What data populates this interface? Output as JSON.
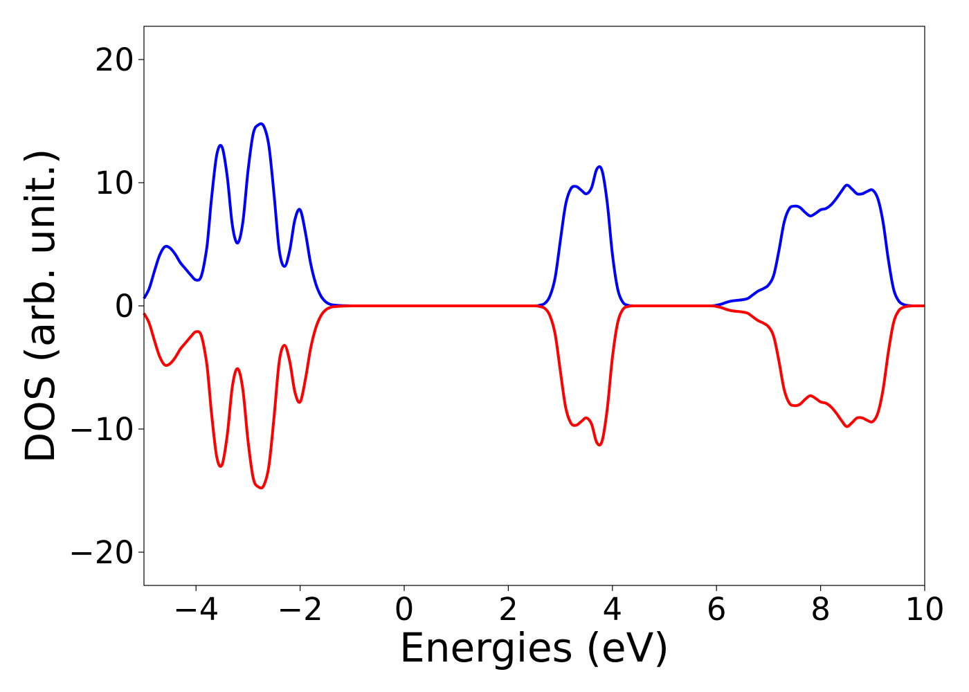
{
  "chart_data": {
    "type": "line",
    "title": "",
    "xlabel": "Energies (eV)",
    "ylabel": "DOS (arb. unit.)",
    "xlim": [
      -5,
      10
    ],
    "ylim": [
      -22.7,
      22.7
    ],
    "xticks": [
      -4,
      -2,
      0,
      2,
      4,
      6,
      8,
      10
    ],
    "xtick_labels": [
      "−4",
      "−2",
      "0",
      "2",
      "4",
      "6",
      "8",
      "10"
    ],
    "yticks": [
      -20,
      -10,
      0,
      10,
      20
    ],
    "ytick_labels": [
      "−20",
      "−10",
      "0",
      "10",
      "20"
    ],
    "grid": false,
    "legend": false,
    "series": [
      {
        "color": "#0000ff",
        "x": [
          -5.0,
          -4.9,
          -4.8,
          -4.7,
          -4.6,
          -4.5,
          -4.4,
          -4.3,
          -4.2,
          -4.1,
          -4.0,
          -3.9,
          -3.8,
          -3.75,
          -3.7,
          -3.6,
          -3.5,
          -3.4,
          -3.3,
          -3.2,
          -3.1,
          -3.0,
          -2.9,
          -2.8,
          -2.7,
          -2.6,
          -2.5,
          -2.4,
          -2.3,
          -2.2,
          -2.1,
          -2.0,
          -1.9,
          -1.8,
          -1.7,
          -1.6,
          -1.5,
          -1.4,
          -1.3,
          -1.2,
          -1.1,
          -1.0,
          -0.9,
          -0.8,
          -0.7,
          -0.6,
          -0.5,
          0.0,
          1.0,
          2.0,
          2.5,
          2.6,
          2.7,
          2.8,
          2.9,
          3.0,
          3.1,
          3.2,
          3.3,
          3.4,
          3.5,
          3.6,
          3.7,
          3.8,
          3.9,
          4.0,
          4.1,
          4.2,
          4.3,
          4.4,
          4.5,
          5.0,
          5.5,
          5.9,
          6.0,
          6.1,
          6.2,
          6.3,
          6.4,
          6.5,
          6.6,
          6.7,
          6.8,
          6.9,
          7.0,
          7.1,
          7.2,
          7.3,
          7.4,
          7.5,
          7.6,
          7.7,
          7.8,
          7.9,
          8.0,
          8.1,
          8.2,
          8.3,
          8.4,
          8.5,
          8.6,
          8.7,
          8.8,
          8.9,
          9.0,
          9.1,
          9.2,
          9.3,
          9.4,
          9.5,
          9.6,
          9.7,
          9.8,
          9.9,
          10.0
        ],
        "y": [
          0.6,
          1.4,
          2.8,
          4.1,
          4.8,
          4.7,
          4.2,
          3.5,
          3.0,
          2.5,
          2.1,
          2.4,
          4.5,
          6.5,
          8.8,
          12.3,
          12.9,
          10.5,
          6.5,
          5.1,
          6.8,
          11.0,
          14.0,
          14.7,
          14.6,
          13.0,
          9.0,
          4.5,
          3.2,
          4.5,
          7.0,
          7.8,
          6.0,
          3.5,
          1.8,
          0.8,
          0.3,
          0.1,
          0.05,
          0.02,
          0.01,
          0.0,
          0.0,
          0.0,
          0.0,
          0.0,
          0.0,
          0.0,
          0.0,
          0.0,
          0.0,
          0.05,
          0.2,
          0.8,
          2.3,
          5.3,
          8.2,
          9.5,
          9.7,
          9.4,
          9.1,
          9.6,
          11.1,
          11.0,
          8.4,
          4.2,
          1.4,
          0.3,
          0.05,
          0.0,
          0.0,
          0.0,
          0.0,
          0.0,
          0.05,
          0.15,
          0.3,
          0.4,
          0.45,
          0.5,
          0.6,
          0.9,
          1.2,
          1.4,
          1.7,
          2.5,
          4.5,
          6.8,
          7.9,
          8.1,
          8.0,
          7.6,
          7.3,
          7.5,
          7.8,
          7.9,
          8.2,
          8.7,
          9.3,
          9.8,
          9.5,
          9.1,
          9.1,
          9.3,
          9.4,
          8.7,
          6.8,
          3.8,
          1.4,
          0.4,
          0.1,
          0.02,
          0.0,
          0.0,
          0.0
        ]
      },
      {
        "color": "#ff0000",
        "x": [
          -5.0,
          -4.9,
          -4.8,
          -4.7,
          -4.6,
          -4.5,
          -4.4,
          -4.3,
          -4.2,
          -4.1,
          -4.0,
          -3.9,
          -3.8,
          -3.75,
          -3.7,
          -3.6,
          -3.5,
          -3.4,
          -3.3,
          -3.2,
          -3.1,
          -3.0,
          -2.9,
          -2.8,
          -2.7,
          -2.6,
          -2.5,
          -2.4,
          -2.3,
          -2.2,
          -2.1,
          -2.0,
          -1.9,
          -1.8,
          -1.7,
          -1.6,
          -1.5,
          -1.4,
          -1.3,
          -1.2,
          -1.1,
          -1.0,
          -0.9,
          -0.8,
          -0.7,
          -0.6,
          -0.5,
          0.0,
          1.0,
          2.0,
          2.5,
          2.6,
          2.7,
          2.8,
          2.9,
          3.0,
          3.1,
          3.2,
          3.3,
          3.4,
          3.5,
          3.6,
          3.7,
          3.8,
          3.9,
          4.0,
          4.1,
          4.2,
          4.3,
          4.4,
          4.5,
          5.0,
          5.5,
          5.9,
          6.0,
          6.1,
          6.2,
          6.3,
          6.4,
          6.5,
          6.6,
          6.7,
          6.8,
          6.9,
          7.0,
          7.1,
          7.2,
          7.3,
          7.4,
          7.5,
          7.6,
          7.7,
          7.8,
          7.9,
          8.0,
          8.1,
          8.2,
          8.3,
          8.4,
          8.5,
          8.6,
          8.7,
          8.8,
          8.9,
          9.0,
          9.1,
          9.2,
          9.3,
          9.4,
          9.5,
          9.6,
          9.7,
          9.8,
          9.9,
          10.0
        ],
        "y": [
          -0.6,
          -1.4,
          -2.8,
          -4.1,
          -4.8,
          -4.7,
          -4.2,
          -3.5,
          -3.0,
          -2.5,
          -2.1,
          -2.4,
          -4.5,
          -6.5,
          -8.8,
          -12.3,
          -12.9,
          -10.5,
          -6.5,
          -5.1,
          -6.8,
          -11.0,
          -14.0,
          -14.7,
          -14.6,
          -13.0,
          -9.0,
          -4.5,
          -3.2,
          -4.5,
          -7.0,
          -7.8,
          -6.0,
          -3.5,
          -1.8,
          -0.8,
          -0.3,
          -0.1,
          -0.05,
          -0.02,
          -0.01,
          0.0,
          0.0,
          0.0,
          0.0,
          0.0,
          0.0,
          0.0,
          0.0,
          0.0,
          0.0,
          -0.05,
          -0.2,
          -0.8,
          -2.3,
          -5.3,
          -8.2,
          -9.5,
          -9.7,
          -9.4,
          -9.1,
          -9.6,
          -11.1,
          -11.0,
          -8.4,
          -4.2,
          -1.4,
          -0.3,
          -0.05,
          0.0,
          0.0,
          0.0,
          0.0,
          0.0,
          -0.05,
          -0.15,
          -0.3,
          -0.4,
          -0.45,
          -0.5,
          -0.6,
          -0.9,
          -1.2,
          -1.4,
          -1.7,
          -2.5,
          -4.5,
          -6.8,
          -7.9,
          -8.1,
          -8.0,
          -7.6,
          -7.3,
          -7.5,
          -7.8,
          -7.9,
          -8.2,
          -8.7,
          -9.3,
          -9.8,
          -9.5,
          -9.1,
          -9.1,
          -9.3,
          -9.4,
          -8.7,
          -6.8,
          -3.8,
          -1.4,
          -0.4,
          -0.1,
          -0.02,
          0.0,
          0.0,
          0.0
        ]
      }
    ]
  }
}
